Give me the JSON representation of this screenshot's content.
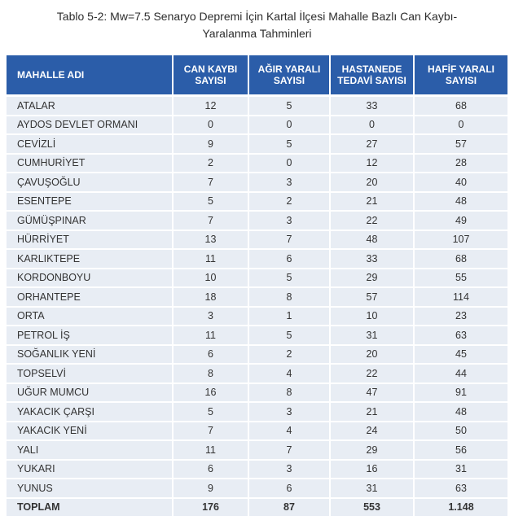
{
  "title": {
    "line1": "Tablo 5-2: Mw=7.5 Senaryo Depremi İçin Kartal İlçesi Mahalle Bazlı Can Kaybı-",
    "line2": "Yaralanma Tahminleri"
  },
  "colors": {
    "header_bg": "#2b5da9",
    "header_text": "#ffffff",
    "row_bg": "#e8edf4",
    "body_text": "#333333",
    "separator": "#ffffff"
  },
  "table": {
    "columns": [
      {
        "id": "mahalle-adi",
        "lines": [
          "MAHALLE ADI"
        ]
      },
      {
        "id": "can-kaybi-sayisi",
        "lines": [
          "CAN KAYBI",
          "SAYISI"
        ]
      },
      {
        "id": "agir-yarali-sayisi",
        "lines": [
          "AĞIR YARALI",
          "SAYISI"
        ]
      },
      {
        "id": "hastanede-tedavi-sayisi",
        "lines": [
          "HASTANEDE",
          "TEDAVİ SAYISI"
        ]
      },
      {
        "id": "hafif-yarali-sayisi",
        "lines": [
          "HAFİF YARALI",
          "SAYISI"
        ]
      }
    ],
    "rows": [
      {
        "name": "ATALAR",
        "values": [
          "12",
          "5",
          "33",
          "68"
        ]
      },
      {
        "name": "AYDOS DEVLET ORMANI",
        "values": [
          "0",
          "0",
          "0",
          "0"
        ]
      },
      {
        "name": "CEVİZLİ",
        "values": [
          "9",
          "5",
          "27",
          "57"
        ]
      },
      {
        "name": "CUMHURİYET",
        "values": [
          "2",
          "0",
          "12",
          "28"
        ]
      },
      {
        "name": "ÇAVUŞOĞLU",
        "values": [
          "7",
          "3",
          "20",
          "40"
        ]
      },
      {
        "name": "ESENTEPE",
        "values": [
          "5",
          "2",
          "21",
          "48"
        ]
      },
      {
        "name": "GÜMÜŞPINAR",
        "values": [
          "7",
          "3",
          "22",
          "49"
        ]
      },
      {
        "name": "HÜRRİYET",
        "values": [
          "13",
          "7",
          "48",
          "107"
        ]
      },
      {
        "name": "KARLIKTEPE",
        "values": [
          "11",
          "6",
          "33",
          "68"
        ]
      },
      {
        "name": "KORDONBOYU",
        "values": [
          "10",
          "5",
          "29",
          "55"
        ]
      },
      {
        "name": "ORHANTEPE",
        "values": [
          "18",
          "8",
          "57",
          "114"
        ]
      },
      {
        "name": "ORTA",
        "values": [
          "3",
          "1",
          "10",
          "23"
        ]
      },
      {
        "name": "PETROL İŞ",
        "values": [
          "11",
          "5",
          "31",
          "63"
        ]
      },
      {
        "name": "SOĞANLIK YENİ",
        "values": [
          "6",
          "2",
          "20",
          "45"
        ]
      },
      {
        "name": "TOPSELVİ",
        "values": [
          "8",
          "4",
          "22",
          "44"
        ]
      },
      {
        "name": "UĞUR MUMCU",
        "values": [
          "16",
          "8",
          "47",
          "91"
        ]
      },
      {
        "name": "YAKACIK ÇARŞI",
        "values": [
          "5",
          "3",
          "21",
          "48"
        ]
      },
      {
        "name": "YAKACIK YENİ",
        "values": [
          "7",
          "4",
          "24",
          "50"
        ]
      },
      {
        "name": "YALI",
        "values": [
          "11",
          "7",
          "29",
          "56"
        ]
      },
      {
        "name": "YUKARI",
        "values": [
          "6",
          "3",
          "16",
          "31"
        ]
      },
      {
        "name": "YUNUS",
        "values": [
          "9",
          "6",
          "31",
          "63"
        ]
      }
    ],
    "total_row": {
      "name": "TOPLAM",
      "values": [
        "176",
        "87",
        "553",
        "1.148"
      ]
    }
  }
}
